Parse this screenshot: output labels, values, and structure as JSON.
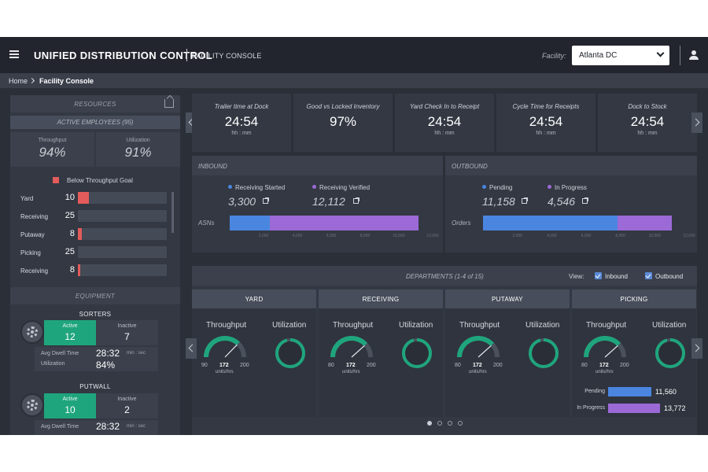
{
  "header": {
    "title": "UNIFIED DISTRIBUTION CONTROL",
    "subtitle": "FACILITY CONSOLE",
    "facility_label": "Facility:",
    "facility_value": "Atlanta DC"
  },
  "breadcrumb": {
    "home": "Home",
    "current": "Facility Console"
  },
  "resources": {
    "title": "RESOURCES",
    "active_employees": "ACTIVE EMPLOYEES (95)",
    "throughput_label": "Throughput",
    "throughput_value": "94%",
    "utilization_label": "Utilization",
    "utilization_value": "91%",
    "legend": "Below Throughput Goal",
    "accent_color": "#e35b5b",
    "rows": [
      {
        "name": "Yard",
        "count": "10",
        "fill": 0.12
      },
      {
        "name": "Receiving",
        "count": "25",
        "fill": 0
      },
      {
        "name": "Putaway",
        "count": "8",
        "fill": 0.04
      },
      {
        "name": "Picking",
        "count": "25",
        "fill": 0
      },
      {
        "name": "Receiving",
        "count": "8",
        "fill": 0.03
      }
    ]
  },
  "equipment": {
    "title": "EQUIPMENT",
    "groups": [
      {
        "name": "SORTERS",
        "active_label": "Active",
        "active_value": "12",
        "inactive_label": "Inactive",
        "inactive_value": "7",
        "dwell_label": "Avg Dwell Time",
        "dwell_value": "28:32",
        "dwell_unit": "min : sec",
        "util_label": "Utilization",
        "util_value": "84%"
      },
      {
        "name": "PUTWALL",
        "active_label": "Active",
        "active_value": "10",
        "inactive_label": "Inactive",
        "inactive_value": "2",
        "dwell_label": "Avg Dwell Time",
        "dwell_value": "28:32",
        "dwell_unit": "min : sec"
      }
    ]
  },
  "kpis": [
    {
      "label": "Trailer time at Dock",
      "value": "24:54",
      "unit": "hh : mm"
    },
    {
      "label": "Good vs Locked Inventory",
      "value": "97%",
      "unit": ""
    },
    {
      "label": "Yard Check In to Receipt",
      "value": "24:54",
      "unit": "hh : mm"
    },
    {
      "label": "Cycle Time for Receipts",
      "value": "24:54",
      "unit": "hh : mm"
    },
    {
      "label": "Dock to Stock",
      "value": "24:54",
      "unit": "hh : mm"
    }
  ],
  "inbound": {
    "title": "INBOUND",
    "axis_label": "ASNs",
    "series": [
      {
        "name": "Receiving Started",
        "value": "3,300",
        "amount": 3300,
        "color": "#4a86e0"
      },
      {
        "name": "Receiving Verified",
        "value": "12,112",
        "amount": 12112,
        "color": "#9b6ad6"
      }
    ],
    "ticks": [
      "2,000",
      "4,000",
      "6,000",
      "8,000",
      "10,000",
      "12,000"
    ]
  },
  "outbound": {
    "title": "OUTBOUND",
    "axis_label": "Orders",
    "series": [
      {
        "name": "Pending",
        "value": "11,158",
        "amount": 11158,
        "color": "#4a86e0"
      },
      {
        "name": "In Progress",
        "value": "4,546",
        "amount": 4546,
        "color": "#9b6ad6"
      }
    ],
    "ticks": [
      "2,000",
      "4,000",
      "6,000",
      "8,000",
      "10,000",
      "12,000"
    ]
  },
  "departments": {
    "title": "DEPARTMENTS (1-4 of 15)",
    "view_label": "View:",
    "filters": [
      "Inbound",
      "Outbound"
    ],
    "gauge_color": "#1fa57d",
    "cards": [
      {
        "name": "YARD",
        "throughput_label": "Throughput",
        "utilization_label": "Utilization",
        "min": "90",
        "max": "200",
        "value": "172",
        "unit": "units/hrs",
        "utilization": "96%",
        "util_fraction": 0.96
      },
      {
        "name": "RECEIVING",
        "throughput_label": "Throughput",
        "utilization_label": "Utilization",
        "min": "80",
        "max": "200",
        "value": "172",
        "unit": "units/hrs",
        "utilization": "96%",
        "util_fraction": 0.96
      },
      {
        "name": "PUTAWAY",
        "throughput_label": "Throughput",
        "utilization_label": "Utilization",
        "min": "80",
        "max": "200",
        "value": "172",
        "unit": "units/hrs",
        "utilization": "96%",
        "util_fraction": 0.96
      },
      {
        "name": "PICKING",
        "throughput_label": "Throughput",
        "utilization_label": "Utilization",
        "min": "80",
        "max": "200",
        "value": "172",
        "unit": "units/hrs",
        "utilization": "96%",
        "util_fraction": 0.96,
        "breakdown": [
          {
            "label": "Pending",
            "value": "11,560",
            "amount": 11560,
            "color": "#4a86e0"
          },
          {
            "label": "In Progress",
            "value": "13,772",
            "amount": 13772,
            "color": "#9b6ad6"
          }
        ]
      }
    ],
    "page_count": 4,
    "active_page": 1
  }
}
